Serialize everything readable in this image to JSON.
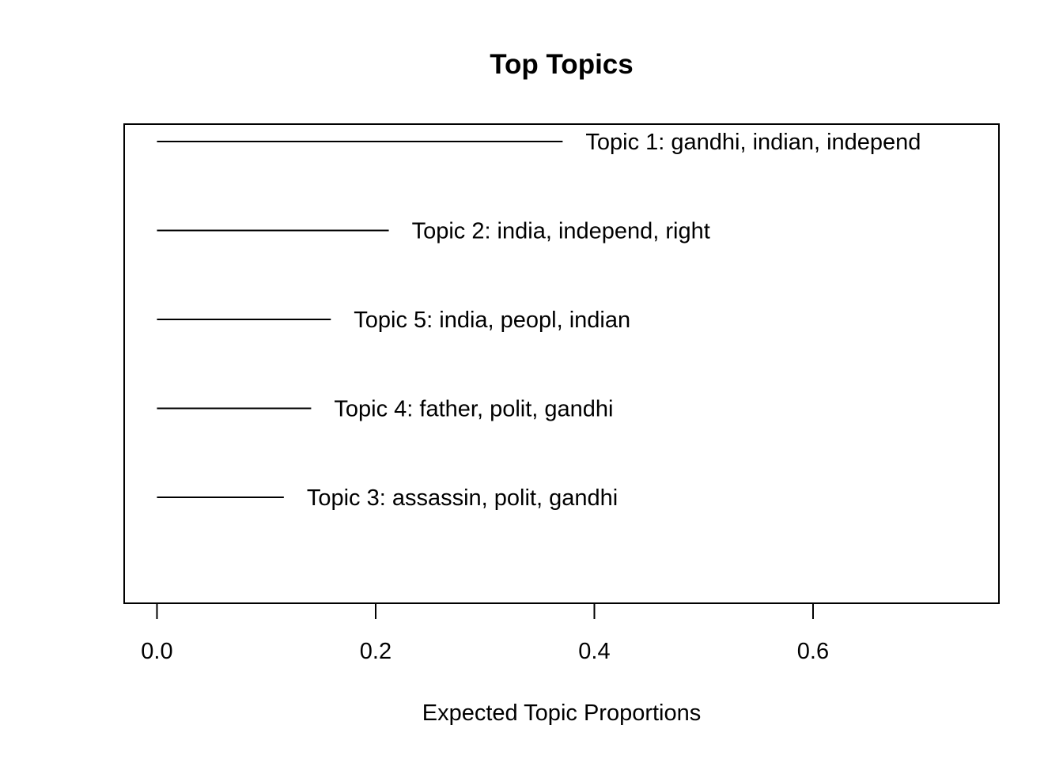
{
  "chart_data": {
    "type": "bar",
    "orientation": "horizontal",
    "title": "Top Topics",
    "xlabel": "Expected Topic Proportions",
    "ylabel": "",
    "xlim": [
      -0.03,
      0.77
    ],
    "xticks": [
      0.0,
      0.2,
      0.4,
      0.6
    ],
    "xtick_labels": [
      "0.0",
      "0.2",
      "0.4",
      "0.6"
    ],
    "grid": false,
    "legend": "none",
    "series": [
      {
        "categories": [
          "Topic 1: gandhi, indian, independ",
          "Topic 2: india, independ, right",
          "Topic 5: india, peopl, indian",
          "Topic 4: father, polit, gandhi",
          "Topic 3: assassin, polit, gandhi"
        ],
        "values": [
          0.371,
          0.212,
          0.159,
          0.141,
          0.116
        ]
      }
    ],
    "colors": {
      "line": "#000000",
      "frame": "#000000",
      "background": "#ffffff"
    }
  }
}
